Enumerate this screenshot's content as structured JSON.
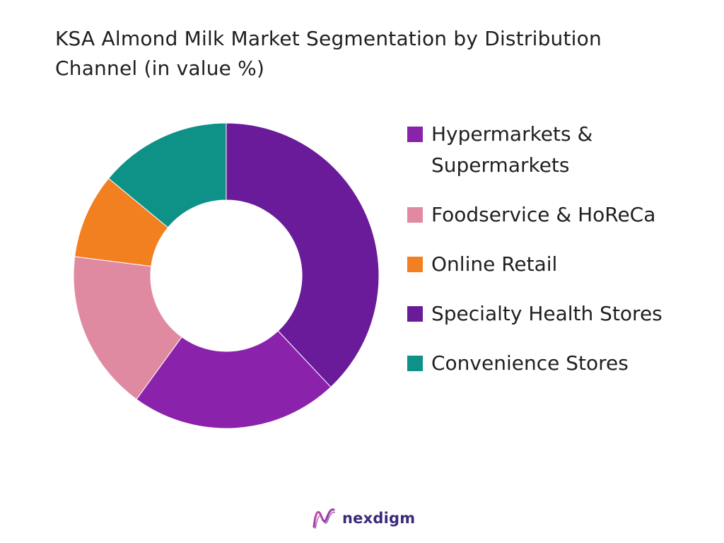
{
  "chart_data": {
    "type": "pie",
    "donut": true,
    "title": "KSA Almond Milk Market Segmentation by Distribution Channel (in value %)",
    "legend_position": "right",
    "categories": [
      "Hypermarkets & Supermarkets",
      "Foodservice & HoReCa",
      "Online Retail",
      "Specialty Health Stores",
      "Convenience Stores"
    ],
    "values": [
      22,
      17,
      9,
      38,
      14
    ],
    "colors": [
      "#8b22ac",
      "#e08aa1",
      "#f27f20",
      "#6a1b9a",
      "#0e9186"
    ],
    "drawing_order": [
      3,
      0,
      1,
      2,
      4
    ],
    "start_angle_deg": 0
  },
  "logo": {
    "text": "nexdigm"
  }
}
